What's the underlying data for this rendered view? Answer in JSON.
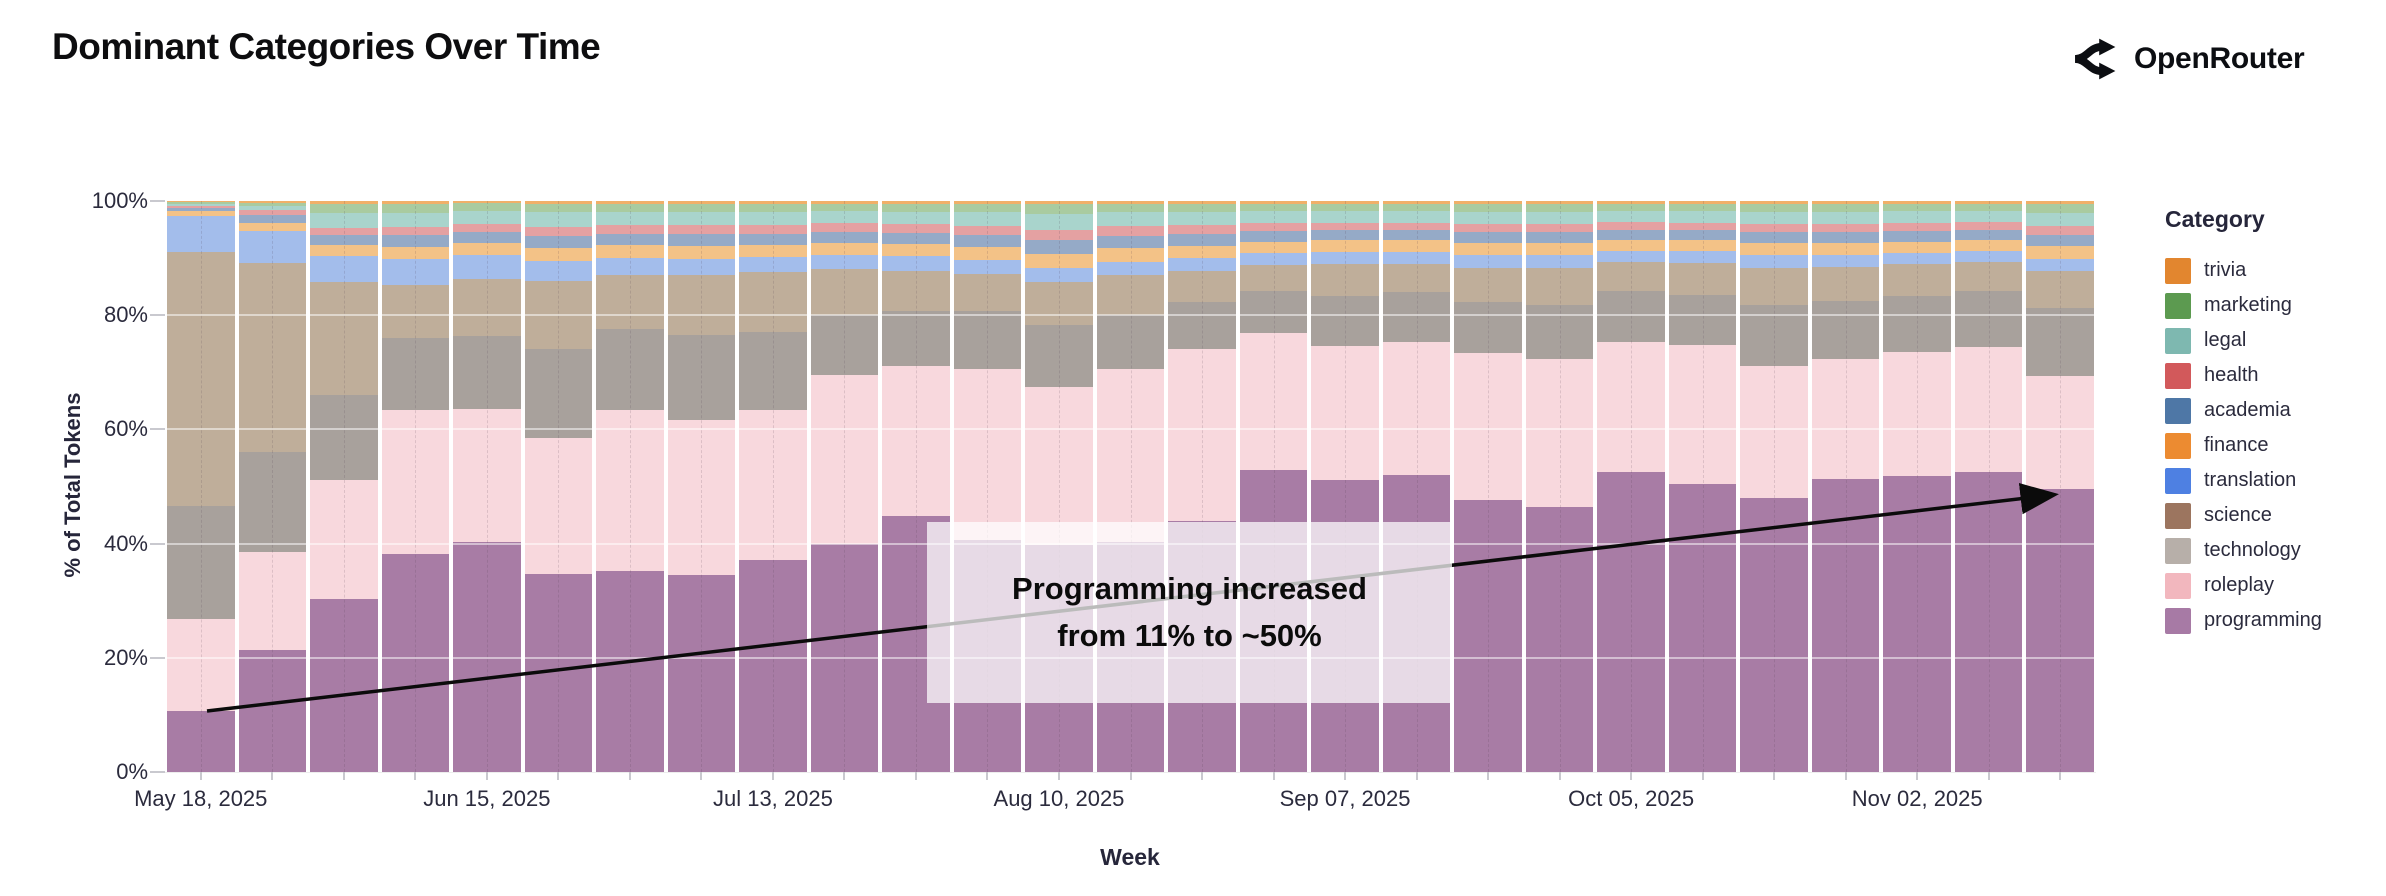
{
  "header": {
    "title": "Dominant Categories Over Time",
    "brand": "OpenRouter"
  },
  "chart_data": {
    "type": "bar",
    "stacked": true,
    "normalized_percent": true,
    "title": "Dominant Categories Over Time",
    "xlabel": "Week",
    "ylabel": "% of Total Tokens",
    "ylim": [
      0,
      100
    ],
    "ytick_labels": [
      "0%",
      "20%",
      "40%",
      "60%",
      "80%",
      "100%"
    ],
    "yticks": [
      0,
      20,
      40,
      60,
      80,
      100
    ],
    "gridlines": [
      20,
      40,
      60,
      80
    ],
    "legend_title": "Category",
    "legend_position": "right",
    "x": [
      "May 18, 2025",
      "May 25, 2025",
      "Jun 01, 2025",
      "Jun 08, 2025",
      "Jun 15, 2025",
      "Jun 22, 2025",
      "Jun 29, 2025",
      "Jul 06, 2025",
      "Jul 13, 2025",
      "Jul 20, 2025",
      "Jul 27, 2025",
      "Aug 03, 2025",
      "Aug 10, 2025",
      "Aug 17, 2025",
      "Aug 24, 2025",
      "Aug 31, 2025",
      "Sep 07, 2025",
      "Sep 14, 2025",
      "Sep 21, 2025",
      "Sep 28, 2025",
      "Oct 05, 2025",
      "Oct 12, 2025",
      "Oct 19, 2025",
      "Oct 26, 2025",
      "Nov 02, 2025",
      "Nov 09, 2025",
      "Nov 16, 2025"
    ],
    "x_labels_shown": [
      "May 18, 2025",
      "Jun 15, 2025",
      "Jul 13, 2025",
      "Aug 10, 2025",
      "Sep 07, 2025",
      "Oct 05, 2025",
      "Nov 02, 2025"
    ],
    "x_label_every": 4,
    "series": [
      {
        "name": "trivia",
        "legend_color": "#E2862F",
        "bar_color": "#F0B069",
        "values": [
          0.2,
          0.3,
          0.5,
          0.5,
          0.4,
          0.5,
          0.5,
          0.5,
          0.5,
          0.5,
          0.5,
          0.5,
          0.6,
          0.5,
          0.5,
          0.5,
          0.5,
          0.5,
          0.5,
          0.5,
          0.5,
          0.5,
          0.5,
          0.5,
          0.5,
          0.5,
          0.5
        ]
      },
      {
        "name": "marketing",
        "legend_color": "#5C9A50",
        "bar_color": "#A9CBA0",
        "values": [
          0.3,
          0.5,
          1.6,
          1.6,
          1.4,
          1.5,
          1.4,
          1.4,
          1.4,
          1.3,
          1.4,
          1.5,
          1.7,
          1.5,
          1.5,
          1.3,
          1.3,
          1.3,
          1.4,
          1.4,
          1.2,
          1.3,
          1.4,
          1.4,
          1.3,
          1.2,
          1.6
        ]
      },
      {
        "name": "legal",
        "legend_color": "#7EB8B0",
        "bar_color": "#A9D4CC",
        "values": [
          0.4,
          0.8,
          2.6,
          2.4,
          2.2,
          2.5,
          2.3,
          2.3,
          2.3,
          2.1,
          2.2,
          2.4,
          2.7,
          2.4,
          2.2,
          2.1,
          2.0,
          2.0,
          2.1,
          2.1,
          2.0,
          2.0,
          2.1,
          2.1,
          2.0,
          2.0,
          2.3
        ]
      },
      {
        "name": "health",
        "legend_color": "#D2595B",
        "bar_color": "#E4A1A2",
        "values": [
          0.4,
          0.8,
          1.2,
          1.5,
          1.4,
          1.6,
          1.6,
          1.6,
          1.5,
          1.5,
          1.5,
          1.6,
          1.8,
          1.7,
          1.5,
          1.4,
          1.3,
          1.3,
          1.5,
          1.4,
          1.3,
          1.3,
          1.5,
          1.5,
          1.4,
          1.3,
          1.5
        ]
      },
      {
        "name": "academia",
        "legend_color": "#4E77A6",
        "bar_color": "#95AAC7",
        "values": [
          0.5,
          1.4,
          1.8,
          2.0,
          1.9,
          2.1,
          2.0,
          2.1,
          2.0,
          2.0,
          2.0,
          2.1,
          2.4,
          2.2,
          2.1,
          1.9,
          1.8,
          1.8,
          1.9,
          1.9,
          1.8,
          1.8,
          1.9,
          1.9,
          1.9,
          1.8,
          2.0
        ]
      },
      {
        "name": "finance",
        "legend_color": "#EC8B31",
        "bar_color": "#F3C287",
        "values": [
          0.8,
          1.4,
          2.0,
          2.2,
          2.1,
          2.3,
          2.2,
          2.3,
          2.2,
          2.1,
          2.1,
          2.3,
          2.6,
          2.4,
          2.2,
          2.0,
          2.0,
          2.0,
          2.1,
          2.1,
          1.9,
          1.9,
          2.1,
          2.1,
          2.0,
          1.9,
          2.2
        ]
      },
      {
        "name": "translation",
        "legend_color": "#4E80E2",
        "bar_color": "#A3BDEB",
        "values": [
          6.4,
          5.6,
          4.5,
          4.6,
          4.3,
          3.5,
          3.0,
          2.8,
          2.6,
          2.5,
          2.5,
          2.4,
          2.4,
          2.2,
          2.2,
          2.0,
          2.2,
          2.1,
          2.2,
          2.3,
          2.0,
          2.1,
          2.2,
          2.1,
          2.0,
          2.0,
          2.2
        ]
      },
      {
        "name": "science",
        "legend_color": "#9C755F",
        "bar_color": "#BFAE9A",
        "values": [
          44.4,
          33.2,
          19.7,
          9.2,
          9.9,
          12.0,
          9.5,
          10.5,
          10.5,
          8.0,
          7.0,
          6.5,
          7.5,
          7.0,
          5.5,
          4.5,
          5.5,
          5.0,
          6.0,
          6.5,
          5.0,
          5.5,
          6.5,
          6.0,
          5.5,
          5.0,
          6.5
        ]
      },
      {
        "name": "technology",
        "legend_color": "#B7AFA9",
        "bar_color": "#A8A19C",
        "values": [
          19.9,
          17.5,
          15.0,
          12.6,
          12.9,
          15.5,
          14.2,
          14.9,
          13.7,
          10.4,
          9.7,
          10.2,
          10.9,
          9.5,
          8.2,
          7.5,
          8.8,
          8.7,
          8.9,
          9.5,
          9.0,
          8.8,
          10.7,
          10.0,
          9.9,
          9.8,
          11.9
        ]
      },
      {
        "name": "roleplay",
        "legend_color": "#F2B7BE",
        "bar_color": "#F8D8DD",
        "values": [
          16.0,
          17.2,
          20.9,
          25.2,
          23.2,
          23.8,
          28.2,
          27.1,
          26.1,
          29.6,
          26.3,
          29.9,
          27.6,
          30.3,
          30.1,
          24.0,
          23.5,
          23.3,
          25.7,
          25.9,
          22.8,
          24.3,
          23.1,
          21.1,
          21.6,
          22.0,
          19.8
        ]
      },
      {
        "name": "programming",
        "legend_color": "#A77AA5",
        "bar_color": "#A87CA5",
        "values": [
          10.7,
          21.3,
          30.2,
          38.2,
          40.3,
          34.7,
          35.1,
          34.5,
          37.2,
          40.0,
          44.8,
          40.6,
          39.8,
          40.3,
          44.0,
          52.8,
          51.1,
          52.0,
          47.7,
          46.4,
          52.5,
          50.5,
          48.0,
          51.3,
          51.9,
          52.5,
          49.5
        ]
      }
    ],
    "stack_order_bottom_to_top": [
      "programming",
      "roleplay",
      "technology",
      "science",
      "translation",
      "finance",
      "academia",
      "health",
      "legal",
      "marketing",
      "trivia"
    ],
    "annotation": {
      "line1": "Programming increased",
      "line2": "from 11% to ~50%",
      "arrow": "from first bar top (11%) to last bar top (~50%)"
    }
  }
}
